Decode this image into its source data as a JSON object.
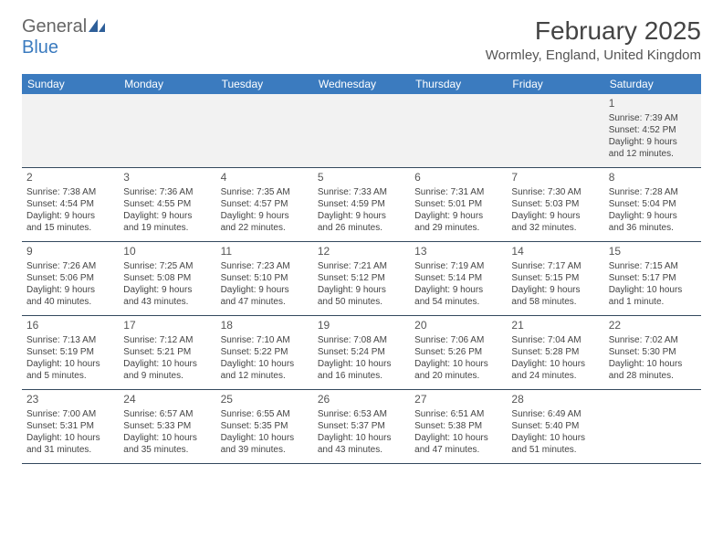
{
  "logo": {
    "general": "General",
    "blue": "Blue"
  },
  "title": {
    "month": "February 2025",
    "location": "Wormley, England, United Kingdom"
  },
  "colors": {
    "header_bg": "#3b7bbf",
    "header_text": "#ffffff",
    "border": "#34495e",
    "text": "#444444",
    "first_week_bg": "#f2f2f2"
  },
  "dayNames": [
    "Sunday",
    "Monday",
    "Tuesday",
    "Wednesday",
    "Thursday",
    "Friday",
    "Saturday"
  ],
  "weeks": [
    [
      null,
      null,
      null,
      null,
      null,
      null,
      {
        "n": "1",
        "sunrise": "7:39 AM",
        "sunset": "4:52 PM",
        "daylight": "9 hours and 12 minutes."
      }
    ],
    [
      {
        "n": "2",
        "sunrise": "7:38 AM",
        "sunset": "4:54 PM",
        "daylight": "9 hours and 15 minutes."
      },
      {
        "n": "3",
        "sunrise": "7:36 AM",
        "sunset": "4:55 PM",
        "daylight": "9 hours and 19 minutes."
      },
      {
        "n": "4",
        "sunrise": "7:35 AM",
        "sunset": "4:57 PM",
        "daylight": "9 hours and 22 minutes."
      },
      {
        "n": "5",
        "sunrise": "7:33 AM",
        "sunset": "4:59 PM",
        "daylight": "9 hours and 26 minutes."
      },
      {
        "n": "6",
        "sunrise": "7:31 AM",
        "sunset": "5:01 PM",
        "daylight": "9 hours and 29 minutes."
      },
      {
        "n": "7",
        "sunrise": "7:30 AM",
        "sunset": "5:03 PM",
        "daylight": "9 hours and 32 minutes."
      },
      {
        "n": "8",
        "sunrise": "7:28 AM",
        "sunset": "5:04 PM",
        "daylight": "9 hours and 36 minutes."
      }
    ],
    [
      {
        "n": "9",
        "sunrise": "7:26 AM",
        "sunset": "5:06 PM",
        "daylight": "9 hours and 40 minutes."
      },
      {
        "n": "10",
        "sunrise": "7:25 AM",
        "sunset": "5:08 PM",
        "daylight": "9 hours and 43 minutes."
      },
      {
        "n": "11",
        "sunrise": "7:23 AM",
        "sunset": "5:10 PM",
        "daylight": "9 hours and 47 minutes."
      },
      {
        "n": "12",
        "sunrise": "7:21 AM",
        "sunset": "5:12 PM",
        "daylight": "9 hours and 50 minutes."
      },
      {
        "n": "13",
        "sunrise": "7:19 AM",
        "sunset": "5:14 PM",
        "daylight": "9 hours and 54 minutes."
      },
      {
        "n": "14",
        "sunrise": "7:17 AM",
        "sunset": "5:15 PM",
        "daylight": "9 hours and 58 minutes."
      },
      {
        "n": "15",
        "sunrise": "7:15 AM",
        "sunset": "5:17 PM",
        "daylight": "10 hours and 1 minute."
      }
    ],
    [
      {
        "n": "16",
        "sunrise": "7:13 AM",
        "sunset": "5:19 PM",
        "daylight": "10 hours and 5 minutes."
      },
      {
        "n": "17",
        "sunrise": "7:12 AM",
        "sunset": "5:21 PM",
        "daylight": "10 hours and 9 minutes."
      },
      {
        "n": "18",
        "sunrise": "7:10 AM",
        "sunset": "5:22 PM",
        "daylight": "10 hours and 12 minutes."
      },
      {
        "n": "19",
        "sunrise": "7:08 AM",
        "sunset": "5:24 PM",
        "daylight": "10 hours and 16 minutes."
      },
      {
        "n": "20",
        "sunrise": "7:06 AM",
        "sunset": "5:26 PM",
        "daylight": "10 hours and 20 minutes."
      },
      {
        "n": "21",
        "sunrise": "7:04 AM",
        "sunset": "5:28 PM",
        "daylight": "10 hours and 24 minutes."
      },
      {
        "n": "22",
        "sunrise": "7:02 AM",
        "sunset": "5:30 PM",
        "daylight": "10 hours and 28 minutes."
      }
    ],
    [
      {
        "n": "23",
        "sunrise": "7:00 AM",
        "sunset": "5:31 PM",
        "daylight": "10 hours and 31 minutes."
      },
      {
        "n": "24",
        "sunrise": "6:57 AM",
        "sunset": "5:33 PM",
        "daylight": "10 hours and 35 minutes."
      },
      {
        "n": "25",
        "sunrise": "6:55 AM",
        "sunset": "5:35 PM",
        "daylight": "10 hours and 39 minutes."
      },
      {
        "n": "26",
        "sunrise": "6:53 AM",
        "sunset": "5:37 PM",
        "daylight": "10 hours and 43 minutes."
      },
      {
        "n": "27",
        "sunrise": "6:51 AM",
        "sunset": "5:38 PM",
        "daylight": "10 hours and 47 minutes."
      },
      {
        "n": "28",
        "sunrise": "6:49 AM",
        "sunset": "5:40 PM",
        "daylight": "10 hours and 51 minutes."
      },
      null
    ]
  ],
  "labels": {
    "sunrise": "Sunrise:",
    "sunset": "Sunset:",
    "daylight": "Daylight:"
  }
}
